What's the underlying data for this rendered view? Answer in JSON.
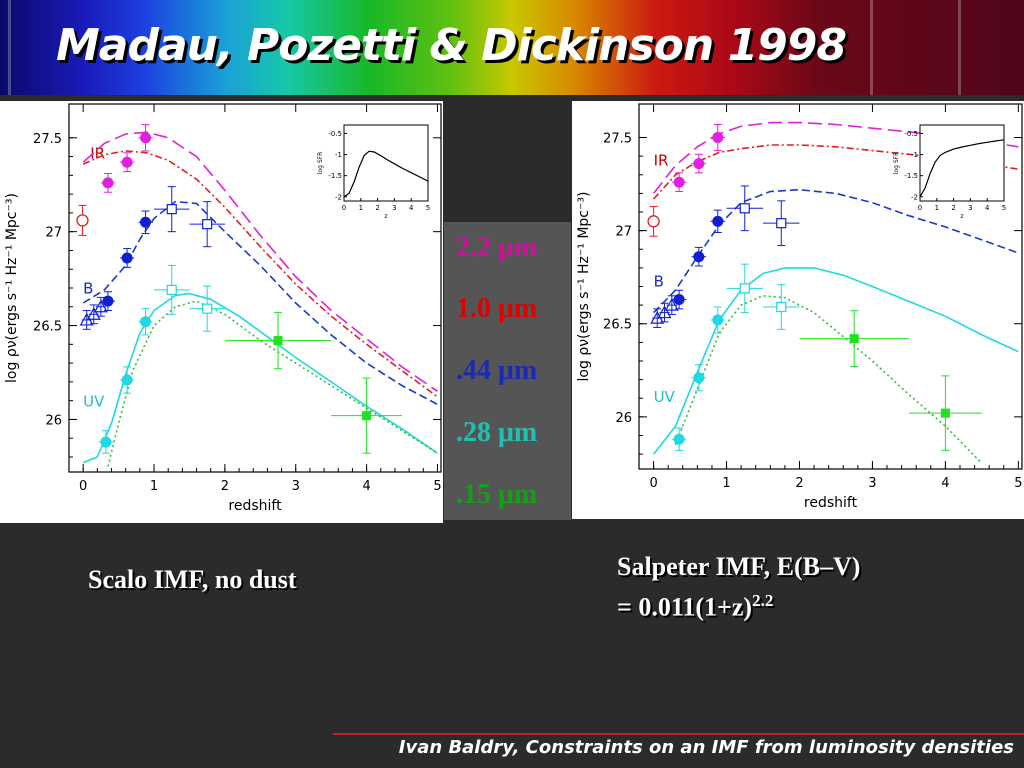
{
  "slide": {
    "title": "Madau, Pozetti & Dickinson 1998",
    "caption_left": "Scalo IMF, no dust",
    "caption_right_line1": "Salpeter IMF, E(B–V)",
    "caption_right_line2": "= 0.011(1+z)",
    "caption_right_sup": "2.2",
    "footer": "Ivan Baldry, Constraints on an IMF from luminosity densities"
  },
  "legend": [
    {
      "label": "2.2 μm",
      "color": "#d0109a"
    },
    {
      "label": "1.0 μm",
      "color": "#e00000"
    },
    {
      "label": ".44 μm",
      "color": "#1a2ab8"
    },
    {
      "label": ".28 μm",
      "color": "#20c0b0"
    },
    {
      "label": ".15 μm",
      "color": "#14a014"
    }
  ],
  "chart_data": [
    {
      "type": "line",
      "xlabel": "redshift",
      "ylabel": "log ρν(ergs s⁻¹ Hz⁻¹ Mpc⁻³)",
      "xlim": [
        -0.2,
        5.05
      ],
      "ylim": [
        25.72,
        27.68
      ],
      "xticks": [
        0,
        1,
        2,
        3,
        4,
        5
      ],
      "yticks": [
        26,
        26.5,
        27,
        27.5
      ],
      "band_labels": [
        {
          "text": "IR",
          "x": 0.1,
          "y": 27.39,
          "color": "#cc0000"
        },
        {
          "text": "B",
          "x": 0.0,
          "y": 26.67,
          "color": "#1a2ab8"
        },
        {
          "text": "UV",
          "x": 0.0,
          "y": 26.07,
          "color": "#20c0c0"
        }
      ],
      "series": [
        {
          "color": "#e020e0",
          "dash": "14,6",
          "x": [
            0,
            0.3,
            0.6,
            0.9,
            1.2,
            1.6,
            2.0,
            2.5,
            3.0,
            3.5,
            4.0,
            4.5,
            5.0
          ],
          "y": [
            27.37,
            27.47,
            27.52,
            27.53,
            27.5,
            27.4,
            27.22,
            26.98,
            26.76,
            26.58,
            26.43,
            26.28,
            26.15
          ]
        },
        {
          "color": "#e02020",
          "dash": "7,3,2,3",
          "x": [
            0,
            0.3,
            0.6,
            0.9,
            1.2,
            1.6,
            2.0,
            2.5,
            3.0,
            3.5,
            4.0,
            4.5,
            5.0
          ],
          "y": [
            27.36,
            27.41,
            27.43,
            27.42,
            27.38,
            27.28,
            27.13,
            26.92,
            26.72,
            26.55,
            26.4,
            26.26,
            26.12
          ]
        },
        {
          "color": "#1a3ac8",
          "dash": "8,4",
          "x": [
            0,
            0.3,
            0.6,
            0.8,
            1.0,
            1.3,
            1.6,
            2.0,
            2.5,
            3.0,
            3.5,
            4.0,
            4.5,
            5.0
          ],
          "y": [
            26.62,
            26.69,
            26.82,
            26.96,
            27.07,
            27.16,
            27.15,
            27.0,
            26.82,
            26.62,
            26.45,
            26.3,
            26.18,
            26.08
          ]
        },
        {
          "color": "#20d8e0",
          "dash": "",
          "x": [
            0,
            0.2,
            0.4,
            0.6,
            0.8,
            1.0,
            1.3,
            1.5,
            1.8,
            2.2,
            2.6,
            3.0,
            3.5,
            4.0,
            4.5,
            5.0
          ],
          "y": [
            25.77,
            25.8,
            25.98,
            26.24,
            26.46,
            26.58,
            26.66,
            26.67,
            26.64,
            26.55,
            26.44,
            26.33,
            26.2,
            26.07,
            25.95,
            25.82
          ]
        },
        {
          "color": "#30c030",
          "dash": "2,3",
          "x": [
            0.35,
            0.5,
            0.7,
            1.0,
            1.3,
            1.6,
            2.0,
            2.5,
            3.0,
            3.5,
            4.0,
            4.5,
            5.0
          ],
          "y": [
            25.75,
            25.98,
            26.26,
            26.5,
            26.6,
            26.63,
            26.56,
            26.42,
            26.3,
            26.18,
            26.06,
            25.94,
            25.82
          ]
        }
      ],
      "points": [
        {
          "x": -0.01,
          "y": 27.06,
          "color": "#e02020",
          "marker": "open-circle",
          "xerr": 0,
          "yerr": 0.08
        },
        {
          "x": 0.35,
          "y": 27.26,
          "color": "#e020e0",
          "marker": "filled-circle",
          "xerr": 0.1,
          "yerr": 0.05
        },
        {
          "x": 0.62,
          "y": 27.37,
          "color": "#e020e0",
          "marker": "filled-circle",
          "xerr": 0.1,
          "yerr": 0.05
        },
        {
          "x": 0.88,
          "y": 27.5,
          "color": "#e020e0",
          "marker": "filled-circle",
          "xerr": 0.1,
          "yerr": 0.07
        },
        {
          "x": 0.35,
          "y": 26.63,
          "color": "#1020d0",
          "marker": "filled-circle",
          "xerr": 0.1,
          "yerr": 0.05
        },
        {
          "x": 0.62,
          "y": 26.86,
          "color": "#1020d0",
          "marker": "filled-circle",
          "xerr": 0.1,
          "yerr": 0.05
        },
        {
          "x": 0.88,
          "y": 27.05,
          "color": "#1020d0",
          "marker": "filled-circle",
          "xerr": 0.1,
          "yerr": 0.06
        },
        {
          "x": 0.05,
          "y": 26.53,
          "color": "#1020d0",
          "marker": "open-triangle",
          "xerr": 0.07,
          "yerr": 0.05
        },
        {
          "x": 0.15,
          "y": 26.56,
          "color": "#1020d0",
          "marker": "open-triangle",
          "xerr": 0.07,
          "yerr": 0.05
        },
        {
          "x": 0.25,
          "y": 26.6,
          "color": "#1020d0",
          "marker": "open-triangle",
          "xerr": 0.07,
          "yerr": 0.05
        },
        {
          "x": 1.25,
          "y": 27.12,
          "color": "#1020d0",
          "marker": "open-square",
          "xerr": 0.25,
          "yerr": 0.12
        },
        {
          "x": 1.75,
          "y": 27.04,
          "color": "#1020d0",
          "marker": "open-square",
          "xerr": 0.25,
          "yerr": 0.12
        },
        {
          "x": 0.32,
          "y": 25.88,
          "color": "#20d8e0",
          "marker": "filled-circle",
          "xerr": 0.1,
          "yerr": 0.06
        },
        {
          "x": 0.62,
          "y": 26.21,
          "color": "#20d8e0",
          "marker": "filled-circle",
          "xerr": 0.1,
          "yerr": 0.07
        },
        {
          "x": 0.88,
          "y": 26.52,
          "color": "#20d8e0",
          "marker": "filled-circle",
          "xerr": 0.1,
          "yerr": 0.07
        },
        {
          "x": 1.25,
          "y": 26.69,
          "color": "#20d8e0",
          "marker": "open-square",
          "xerr": 0.25,
          "yerr": 0.13
        },
        {
          "x": 1.75,
          "y": 26.59,
          "color": "#20d8e0",
          "marker": "open-square",
          "xerr": 0.25,
          "yerr": 0.12
        },
        {
          "x": 2.75,
          "y": 26.42,
          "color": "#20e020",
          "marker": "filled-square",
          "xerr": 0.75,
          "yerr": 0.15
        },
        {
          "x": 4.0,
          "y": 26.02,
          "color": "#20e020",
          "marker": "filled-square",
          "xerr": 0.5,
          "yerr": 0.2
        }
      ],
      "inset": {
        "xlabel": "z",
        "ylabel": "log SFR",
        "xlim": [
          0,
          5
        ],
        "ylim": [
          -2.1,
          -0.3
        ],
        "xticks": [
          0,
          1,
          2,
          3,
          4,
          5
        ],
        "yticks": [
          -2,
          -1.5,
          -1,
          -0.5
        ],
        "x": [
          0,
          0.3,
          0.6,
          0.9,
          1.2,
          1.5,
          1.8,
          2.2,
          2.6,
          3.0,
          3.5,
          4.0,
          4.5,
          5.0
        ],
        "y": [
          -2.0,
          -1.92,
          -1.65,
          -1.3,
          -1.02,
          -0.92,
          -0.94,
          -1.03,
          -1.13,
          -1.22,
          -1.33,
          -1.43,
          -1.53,
          -1.63
        ]
      }
    },
    {
      "type": "line",
      "xlabel": "redshift",
      "ylabel": "log ρν(ergs s⁻¹ Hz⁻¹ Mpc⁻³)",
      "xlim": [
        -0.2,
        5.05
      ],
      "ylim": [
        25.72,
        27.68
      ],
      "xticks": [
        0,
        1,
        2,
        3,
        4,
        5
      ],
      "yticks": [
        26,
        26.5,
        27,
        27.5
      ],
      "band_labels": [
        {
          "text": "IR",
          "x": 0.0,
          "y": 27.35,
          "color": "#cc0000"
        },
        {
          "text": "B",
          "x": 0.0,
          "y": 26.7,
          "color": "#1a2ab8"
        },
        {
          "text": "UV",
          "x": 0.0,
          "y": 26.08,
          "color": "#20c0c0"
        }
      ],
      "series": [
        {
          "color": "#e020e0",
          "dash": "14,6",
          "x": [
            0,
            0.3,
            0.6,
            0.9,
            1.2,
            1.6,
            2.0,
            2.5,
            3.0,
            3.5,
            4.0,
            4.5,
            5.0
          ],
          "y": [
            27.2,
            27.35,
            27.45,
            27.52,
            27.56,
            27.58,
            27.58,
            27.57,
            27.55,
            27.53,
            27.51,
            27.48,
            27.45
          ]
        },
        {
          "color": "#e02020",
          "dash": "7,3,2,3",
          "x": [
            0,
            0.3,
            0.6,
            0.9,
            1.2,
            1.6,
            2.0,
            2.5,
            3.0,
            3.5,
            4.0,
            4.5,
            5.0
          ],
          "y": [
            27.17,
            27.3,
            27.37,
            27.42,
            27.44,
            27.46,
            27.46,
            27.45,
            27.43,
            27.41,
            27.39,
            27.36,
            27.33
          ]
        },
        {
          "color": "#1a3ac8",
          "dash": "8,4",
          "x": [
            0,
            0.3,
            0.6,
            0.9,
            1.2,
            1.6,
            2.0,
            2.5,
            3.0,
            3.5,
            4.0,
            4.5,
            5.0
          ],
          "y": [
            26.56,
            26.68,
            26.86,
            27.03,
            27.15,
            27.21,
            27.22,
            27.2,
            27.15,
            27.08,
            27.02,
            26.95,
            26.88
          ]
        },
        {
          "color": "#20d8e0",
          "dash": "",
          "x": [
            0,
            0.3,
            0.6,
            0.9,
            1.2,
            1.5,
            1.8,
            2.2,
            2.6,
            3.0,
            3.5,
            4.0,
            4.5,
            5.0
          ],
          "y": [
            25.8,
            25.95,
            26.24,
            26.52,
            26.68,
            26.77,
            26.8,
            26.8,
            26.76,
            26.7,
            26.62,
            26.54,
            26.44,
            26.35
          ]
        },
        {
          "color": "#30c030",
          "dash": "2,3",
          "x": [
            0.3,
            0.6,
            0.9,
            1.2,
            1.5,
            1.8,
            2.2,
            2.6,
            3.0,
            3.5,
            4.0,
            4.5
          ],
          "y": [
            25.85,
            26.15,
            26.45,
            26.6,
            26.65,
            26.64,
            26.56,
            26.43,
            26.3,
            26.12,
            25.95,
            25.75
          ]
        }
      ],
      "points": [
        {
          "x": 0.0,
          "y": 27.05,
          "color": "#e02020",
          "marker": "open-circle",
          "xerr": 0,
          "yerr": 0.08
        },
        {
          "x": 0.35,
          "y": 27.26,
          "color": "#e020e0",
          "marker": "filled-circle",
          "xerr": 0.1,
          "yerr": 0.05
        },
        {
          "x": 0.62,
          "y": 27.36,
          "color": "#e020e0",
          "marker": "filled-circle",
          "xerr": 0.1,
          "yerr": 0.05
        },
        {
          "x": 0.88,
          "y": 27.5,
          "color": "#e020e0",
          "marker": "filled-circle",
          "xerr": 0.1,
          "yerr": 0.07
        },
        {
          "x": 0.35,
          "y": 26.63,
          "color": "#1020d0",
          "marker": "filled-circle",
          "xerr": 0.1,
          "yerr": 0.05
        },
        {
          "x": 0.62,
          "y": 26.86,
          "color": "#1020d0",
          "marker": "filled-circle",
          "xerr": 0.1,
          "yerr": 0.05
        },
        {
          "x": 0.88,
          "y": 27.05,
          "color": "#1020d0",
          "marker": "filled-circle",
          "xerr": 0.1,
          "yerr": 0.06
        },
        {
          "x": 0.05,
          "y": 26.53,
          "color": "#1020d0",
          "marker": "open-triangle",
          "xerr": 0.07,
          "yerr": 0.05
        },
        {
          "x": 0.15,
          "y": 26.56,
          "color": "#1020d0",
          "marker": "open-triangle",
          "xerr": 0.07,
          "yerr": 0.05
        },
        {
          "x": 0.25,
          "y": 26.6,
          "color": "#1020d0",
          "marker": "open-triangle",
          "xerr": 0.07,
          "yerr": 0.05
        },
        {
          "x": 1.25,
          "y": 27.12,
          "color": "#1020d0",
          "marker": "open-square",
          "xerr": 0.25,
          "yerr": 0.12
        },
        {
          "x": 1.75,
          "y": 27.04,
          "color": "#1020d0",
          "marker": "open-square",
          "xerr": 0.25,
          "yerr": 0.12
        },
        {
          "x": 0.35,
          "y": 25.88,
          "color": "#20d8e0",
          "marker": "filled-circle",
          "xerr": 0.1,
          "yerr": 0.06
        },
        {
          "x": 0.62,
          "y": 26.21,
          "color": "#20d8e0",
          "marker": "filled-circle",
          "xerr": 0.1,
          "yerr": 0.07
        },
        {
          "x": 0.88,
          "y": 26.52,
          "color": "#20d8e0",
          "marker": "filled-circle",
          "xerr": 0.1,
          "yerr": 0.07
        },
        {
          "x": 1.25,
          "y": 26.69,
          "color": "#20d8e0",
          "marker": "open-square",
          "xerr": 0.25,
          "yerr": 0.13
        },
        {
          "x": 1.75,
          "y": 26.59,
          "color": "#20d8e0",
          "marker": "open-square",
          "xerr": 0.25,
          "yerr": 0.12
        },
        {
          "x": 2.75,
          "y": 26.42,
          "color": "#20e020",
          "marker": "filled-square",
          "xerr": 0.75,
          "yerr": 0.15
        },
        {
          "x": 4.0,
          "y": 26.02,
          "color": "#20e020",
          "marker": "filled-square",
          "xerr": 0.5,
          "yerr": 0.2
        }
      ],
      "inset": {
        "xlabel": "z",
        "ylabel": "log SFR",
        "xlim": [
          0,
          5
        ],
        "ylim": [
          -2.1,
          -0.3
        ],
        "xticks": [
          0,
          1,
          2,
          3,
          4,
          5
        ],
        "yticks": [
          -2,
          -1.5,
          -1,
          -0.5
        ],
        "x": [
          0,
          0.3,
          0.6,
          0.9,
          1.2,
          1.5,
          2.0,
          2.5,
          3.0,
          3.5,
          4.0,
          4.5,
          5.0
        ],
        "y": [
          -2.0,
          -1.8,
          -1.45,
          -1.18,
          -1.02,
          -0.95,
          -0.87,
          -0.82,
          -0.78,
          -0.74,
          -0.71,
          -0.68,
          -0.65
        ]
      }
    }
  ]
}
